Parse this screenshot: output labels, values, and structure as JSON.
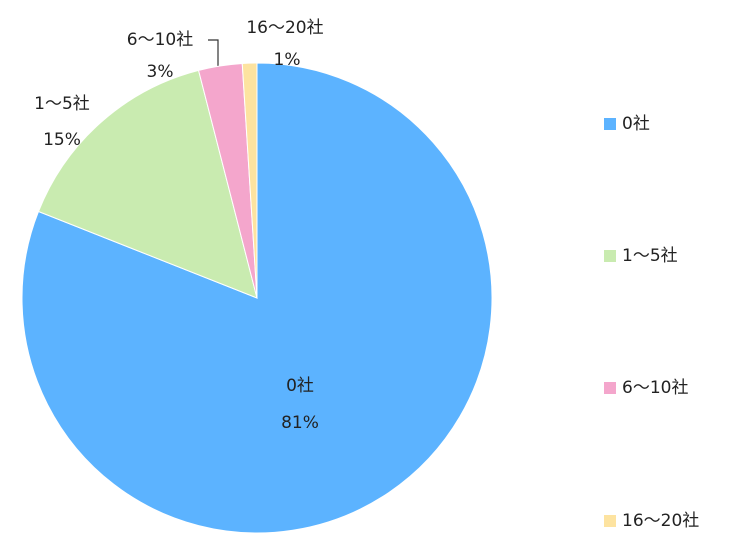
{
  "chart_data": {
    "type": "pie",
    "categories": [
      "0社",
      "1～5社",
      "6～10社",
      "16～20社"
    ],
    "values": [
      81,
      15,
      3,
      1
    ],
    "value_labels": [
      "81%",
      "15%",
      "3%",
      "1%"
    ],
    "colors": [
      "#5cb3ff",
      "#c9ebb0",
      "#f4a6cc",
      "#fde3a0"
    ],
    "legend": "right"
  }
}
